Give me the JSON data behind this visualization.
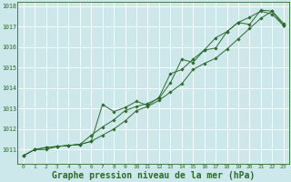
{
  "background_color": "#cce8ea",
  "grid_color": "#b0d4d8",
  "line_color": "#2d6a2d",
  "marker_color": "#2d6a2d",
  "xlabel": "Graphe pression niveau de la mer (hPa)",
  "xlabel_fontsize": 7.0,
  "xlim": [
    -0.5,
    23.5
  ],
  "ylim": [
    1010.3,
    1018.2
  ],
  "yticks": [
    1011,
    1012,
    1013,
    1014,
    1015,
    1016,
    1017,
    1018
  ],
  "xticks": [
    0,
    1,
    2,
    3,
    4,
    5,
    6,
    7,
    8,
    9,
    10,
    11,
    12,
    13,
    14,
    15,
    16,
    17,
    18,
    19,
    20,
    21,
    22,
    23
  ],
  "series1": [
    1010.7,
    1011.0,
    1011.0,
    1011.15,
    1011.2,
    1011.25,
    1011.4,
    1011.7,
    1012.0,
    1012.4,
    1012.9,
    1013.1,
    1013.4,
    1013.8,
    1014.2,
    1014.9,
    1015.2,
    1015.45,
    1015.9,
    1016.4,
    1016.9,
    1017.4,
    1017.75,
    1017.15
  ],
  "series2": [
    1010.7,
    1011.0,
    1011.1,
    1011.15,
    1011.2,
    1011.25,
    1011.7,
    1012.1,
    1012.45,
    1012.9,
    1013.1,
    1013.25,
    1013.5,
    1014.25,
    1015.4,
    1015.25,
    1015.85,
    1016.45,
    1016.75,
    1017.2,
    1017.45,
    1017.75,
    1017.6,
    1017.05
  ],
  "series3": [
    1010.7,
    1011.0,
    1011.1,
    1011.15,
    1011.2,
    1011.25,
    1011.4,
    1013.2,
    1012.85,
    1013.05,
    1013.35,
    1013.15,
    1013.55,
    1014.7,
    1014.9,
    1015.4,
    1015.85,
    1015.95,
    1016.75,
    1017.2,
    1017.1,
    1017.8,
    1017.75,
    1017.05
  ]
}
